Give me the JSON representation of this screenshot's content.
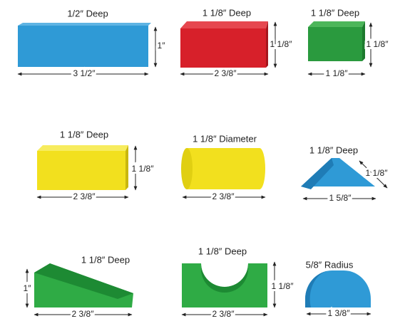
{
  "blocks": [
    {
      "label": "1/2″ Deep",
      "height": "1″",
      "width": "3 1/2″"
    },
    {
      "label": "1 1/8″ Deep",
      "height": "1 1/8″",
      "width": "2 3/8″"
    },
    {
      "label": "1 1/8″ Deep",
      "height": "1 1/8″",
      "width": "1 1/8″"
    },
    {
      "label": "1 1/8″ Deep",
      "height": "1 1/8″",
      "width": "2 3/8″"
    },
    {
      "label": "1 1/8″ Diameter",
      "width": "2 3/8″"
    },
    {
      "label": "1 1/8″ Deep",
      "height": "1 1/8″",
      "width": "1 5/8″"
    },
    {
      "label": "1 1/8″ Deep",
      "height": "1″",
      "width": "2 3/8″"
    },
    {
      "label": "1 1/8″ Deep",
      "height": "1 1/8″",
      "width": "2 3/8″"
    },
    {
      "label": "5/8″ Radius",
      "width": "1 3/8″"
    }
  ]
}
